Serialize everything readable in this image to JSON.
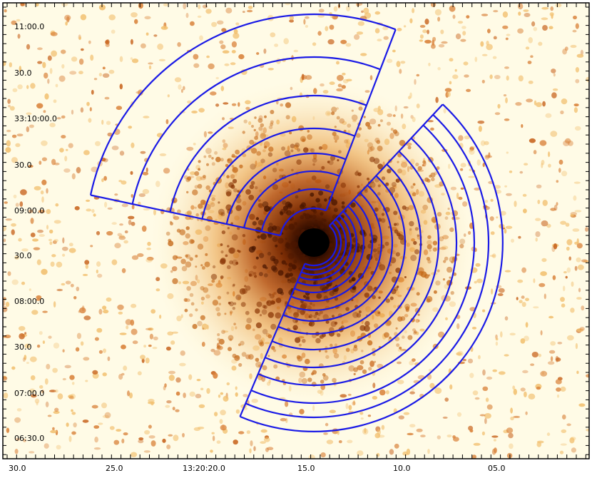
{
  "figure": {
    "colors": {
      "background": "#fffbe6",
      "core": "#000000",
      "glow_dark": "#5a1e00",
      "glow_mid": "#b5500e",
      "glow_light": "#e89a3a",
      "speckle": "#d9823a",
      "regions": "#1a1ae6",
      "axis": "#000000"
    },
    "y_tick_labels": [
      "11:00.0",
      "30.0",
      "33:10:00.0",
      "30.0",
      "09:00.0",
      "30.0",
      "08:00.0",
      "30.0",
      "07:00.0",
      "06:30.0"
    ],
    "x_tick_labels": [
      "30.0",
      "25.0",
      "13:20:20.0",
      "15.0",
      "10.0",
      "05.0"
    ],
    "regions": [
      {
        "name": "left-sector-annuli",
        "shape": "annular-sector",
        "annulus_count": 7
      },
      {
        "name": "right-sector-annuli",
        "shape": "annular-sector",
        "annulus_count": 16
      }
    ]
  }
}
